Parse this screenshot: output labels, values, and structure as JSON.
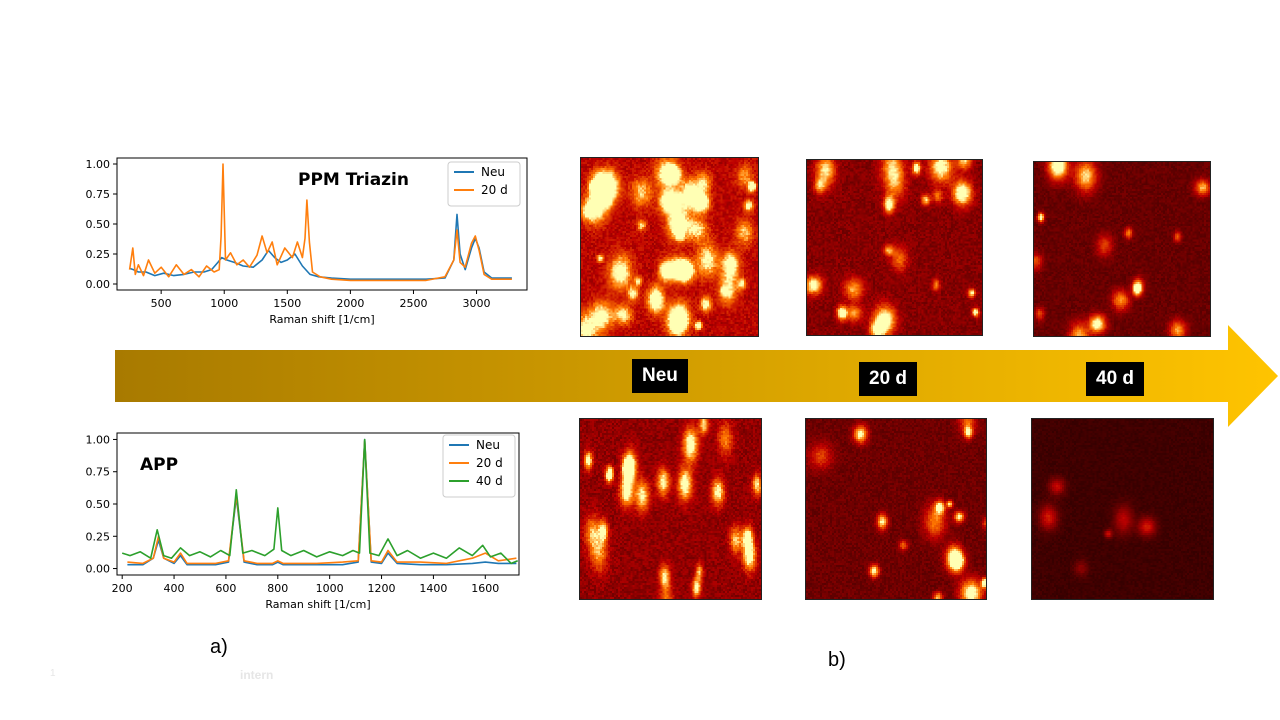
{
  "panel_labels": {
    "a": "a)",
    "b": "b)"
  },
  "footer": {
    "page_number": "1",
    "classification": "intern"
  },
  "arrow": {
    "color_start": "#a87a00",
    "color_end": "#ffc400"
  },
  "timeline_labels": [
    "Neu",
    "20 d",
    "40 d"
  ],
  "chart_data": [
    {
      "type": "line",
      "title": "PPM Triazin",
      "xlabel": "Raman shift [1/cm]",
      "ylabel": "",
      "xlim": [
        150,
        3400
      ],
      "ylim": [
        -0.05,
        1.05
      ],
      "xticks": [
        500,
        1000,
        1500,
        2000,
        2500,
        3000
      ],
      "yticks": [
        0.0,
        0.25,
        0.5,
        0.75,
        1.0
      ],
      "ytick_labels": [
        "0.00",
        "0.25",
        "0.50",
        "0.75",
        "1.00"
      ],
      "legend": "top-right",
      "series": [
        {
          "name": "Neu",
          "color": "#1f77b4",
          "x": [
            250,
            280,
            320,
            380,
            450,
            520,
            600,
            680,
            760,
            840,
            900,
            950,
            980,
            1020,
            1080,
            1150,
            1230,
            1300,
            1350,
            1400,
            1450,
            1500,
            1560,
            1620,
            1680,
            1750,
            1850,
            2000,
            2200,
            2400,
            2600,
            2750,
            2820,
            2845,
            2870,
            2910,
            2960,
            2990,
            3020,
            3060,
            3120,
            3200,
            3280
          ],
          "y": [
            0.13,
            0.12,
            0.1,
            0.1,
            0.07,
            0.09,
            0.07,
            0.08,
            0.1,
            0.1,
            0.12,
            0.18,
            0.22,
            0.2,
            0.18,
            0.15,
            0.14,
            0.2,
            0.28,
            0.22,
            0.18,
            0.2,
            0.25,
            0.15,
            0.08,
            0.06,
            0.05,
            0.04,
            0.04,
            0.04,
            0.04,
            0.05,
            0.2,
            0.58,
            0.25,
            0.12,
            0.3,
            0.38,
            0.3,
            0.1,
            0.05,
            0.05,
            0.05
          ]
        },
        {
          "name": "20 d",
          "color": "#ff7f0e",
          "x": [
            250,
            275,
            295,
            320,
            360,
            400,
            450,
            500,
            560,
            620,
            680,
            740,
            800,
            860,
            920,
            960,
            975,
            990,
            1010,
            1050,
            1100,
            1150,
            1200,
            1260,
            1300,
            1340,
            1380,
            1420,
            1480,
            1540,
            1580,
            1620,
            1640,
            1655,
            1675,
            1700,
            1760,
            1850,
            2000,
            2200,
            2400,
            2600,
            2750,
            2820,
            2845,
            2870,
            2910,
            2960,
            2990,
            3020,
            3060,
            3120,
            3200,
            3280
          ],
          "y": [
            0.12,
            0.3,
            0.08,
            0.16,
            0.07,
            0.2,
            0.09,
            0.14,
            0.06,
            0.16,
            0.08,
            0.12,
            0.06,
            0.15,
            0.1,
            0.12,
            0.4,
            1.0,
            0.2,
            0.26,
            0.16,
            0.2,
            0.14,
            0.24,
            0.4,
            0.26,
            0.35,
            0.16,
            0.3,
            0.22,
            0.35,
            0.22,
            0.38,
            0.7,
            0.35,
            0.1,
            0.06,
            0.04,
            0.03,
            0.03,
            0.03,
            0.03,
            0.06,
            0.2,
            0.45,
            0.18,
            0.14,
            0.34,
            0.4,
            0.28,
            0.08,
            0.04,
            0.04,
            0.04
          ]
        }
      ]
    },
    {
      "type": "line",
      "title": "APP",
      "xlabel": "Raman shift [1/cm]",
      "ylabel": "",
      "xlim": [
        180,
        1730
      ],
      "ylim": [
        -0.05,
        1.05
      ],
      "xticks": [
        200,
        400,
        600,
        800,
        1000,
        1200,
        1400,
        1600
      ],
      "yticks": [
        0.0,
        0.25,
        0.5,
        0.75,
        1.0
      ],
      "ytick_labels": [
        "0.00",
        "0.25",
        "0.50",
        "0.75",
        "1.00"
      ],
      "legend": "top-right",
      "series": [
        {
          "name": "Neu",
          "color": "#1f77b4",
          "x": [
            220,
            280,
            320,
            340,
            360,
            400,
            425,
            450,
            500,
            560,
            610,
            640,
            670,
            720,
            780,
            800,
            820,
            880,
            950,
            1050,
            1110,
            1135,
            1160,
            1200,
            1225,
            1260,
            1350,
            1450,
            1550,
            1600,
            1650,
            1720
          ],
          "y": [
            0.03,
            0.03,
            0.08,
            0.22,
            0.08,
            0.04,
            0.1,
            0.03,
            0.03,
            0.03,
            0.05,
            0.55,
            0.05,
            0.03,
            0.03,
            0.05,
            0.03,
            0.03,
            0.03,
            0.03,
            0.05,
            1.0,
            0.05,
            0.04,
            0.12,
            0.04,
            0.03,
            0.03,
            0.04,
            0.05,
            0.04,
            0.04
          ]
        },
        {
          "name": "20 d",
          "color": "#ff7f0e",
          "x": [
            220,
            280,
            320,
            340,
            360,
            400,
            425,
            450,
            500,
            560,
            610,
            640,
            670,
            720,
            780,
            800,
            820,
            880,
            950,
            1050,
            1110,
            1135,
            1160,
            1200,
            1225,
            1260,
            1350,
            1450,
            1550,
            1600,
            1650,
            1720
          ],
          "y": [
            0.05,
            0.04,
            0.08,
            0.25,
            0.08,
            0.05,
            0.12,
            0.04,
            0.04,
            0.04,
            0.06,
            0.57,
            0.06,
            0.04,
            0.04,
            0.06,
            0.04,
            0.04,
            0.04,
            0.05,
            0.06,
            0.99,
            0.06,
            0.05,
            0.14,
            0.05,
            0.05,
            0.04,
            0.08,
            0.12,
            0.06,
            0.08
          ]
        },
        {
          "name": "40 d",
          "color": "#2ca02c",
          "x": [
            200,
            230,
            270,
            310,
            335,
            360,
            390,
            425,
            460,
            500,
            540,
            580,
            615,
            640,
            665,
            700,
            750,
            785,
            800,
            815,
            850,
            900,
            950,
            1000,
            1050,
            1090,
            1115,
            1135,
            1155,
            1190,
            1225,
            1260,
            1300,
            1350,
            1400,
            1450,
            1500,
            1550,
            1590,
            1620,
            1660,
            1700,
            1725
          ],
          "y": [
            0.12,
            0.1,
            0.13,
            0.08,
            0.3,
            0.1,
            0.08,
            0.16,
            0.1,
            0.13,
            0.09,
            0.14,
            0.1,
            0.61,
            0.12,
            0.14,
            0.1,
            0.15,
            0.47,
            0.14,
            0.1,
            0.14,
            0.09,
            0.13,
            0.1,
            0.14,
            0.12,
            1.0,
            0.12,
            0.1,
            0.23,
            0.1,
            0.14,
            0.08,
            0.12,
            0.08,
            0.16,
            0.1,
            0.18,
            0.09,
            0.12,
            0.04,
            0.06
          ]
        }
      ]
    }
  ]
}
